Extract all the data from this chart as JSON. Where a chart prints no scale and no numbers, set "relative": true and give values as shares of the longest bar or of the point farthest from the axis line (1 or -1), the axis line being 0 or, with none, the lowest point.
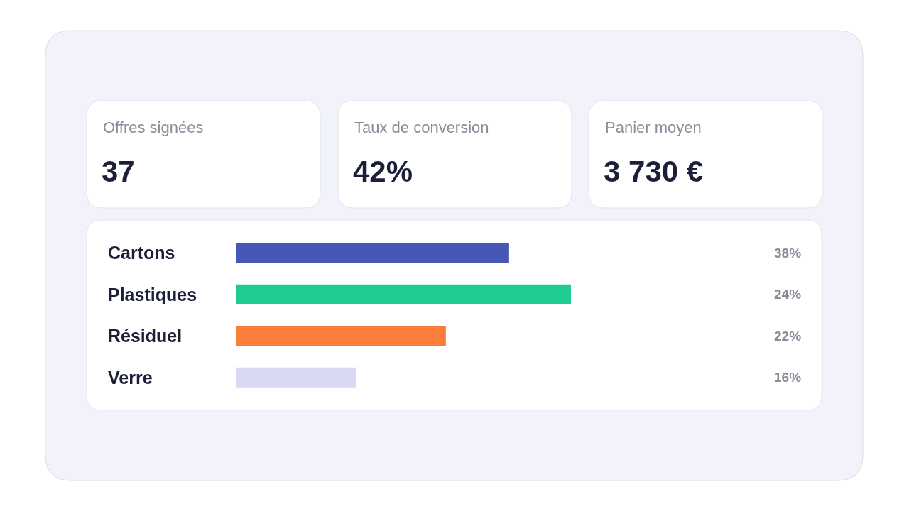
{
  "chart_data": [
    {
      "type": "other",
      "categories": [
        "Offres signées",
        "Taux de conversion",
        "Panier moyen"
      ],
      "values": [
        37,
        42,
        3730
      ],
      "value_labels": [
        "37",
        "42%",
        "3 730 €"
      ]
    },
    {
      "type": "bar",
      "orientation": "horizontal",
      "relative": true,
      "categories": [
        "Cartons",
        "Plastiques",
        "Résiduel",
        "Verre"
      ],
      "values": [
        0.815,
        1,
        0.626,
        0.357
      ],
      "colors": [
        "#4657b8",
        "#20cc92",
        "#fb7d3b",
        "#d8d9f3"
      ],
      "annotations": [
        "38%",
        "24%",
        "22%",
        "16%"
      ]
    }
  ]
}
